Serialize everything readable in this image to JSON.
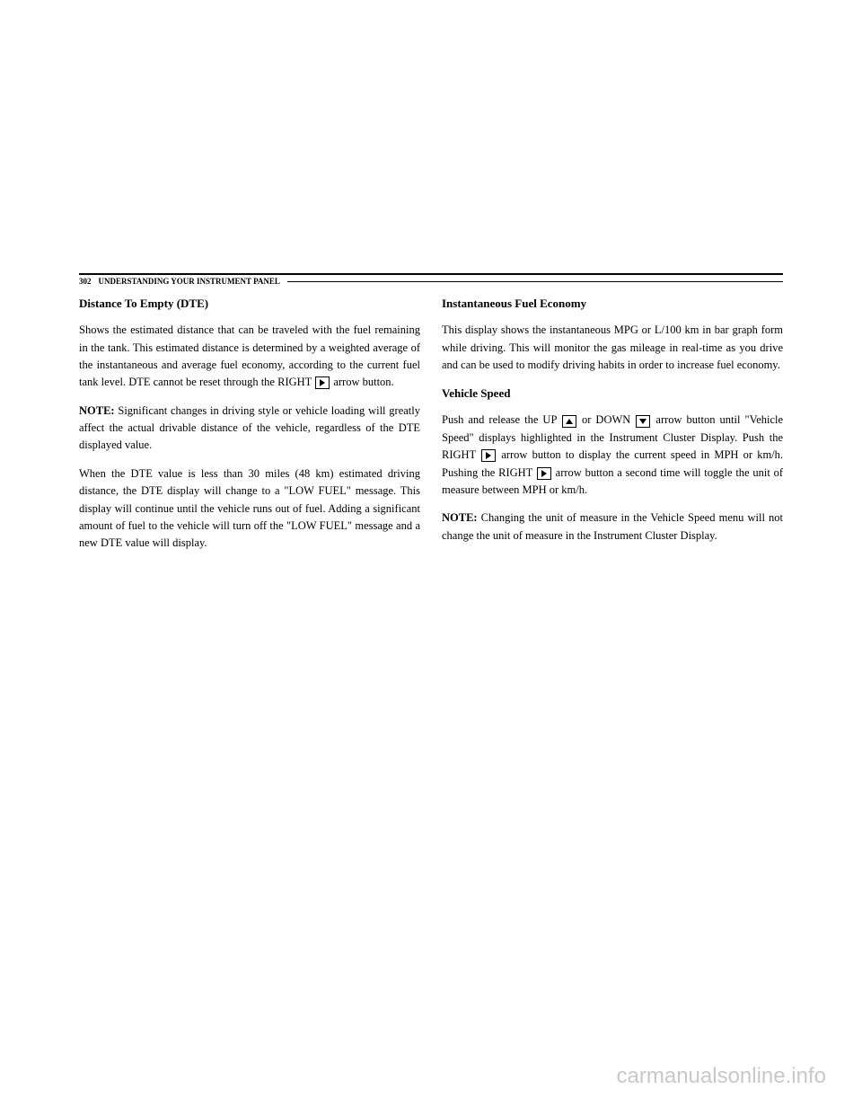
{
  "header": {
    "page_number": "302",
    "section_title": "UNDERSTANDING YOUR INSTRUMENT PANEL"
  },
  "left_column": {
    "title1": "Distance To Empty (DTE)",
    "para1_part1": "Shows the estimated distance that can be traveled with the fuel remaining in the tank. This estimated distance is determined by a weighted average of the instantaneous and average fuel economy, according to the current fuel tank level. DTE cannot be reset through the RIGHT",
    "para1_part2": "arrow button.",
    "note1_label": "NOTE:",
    "note1_text": " Significant changes in driving style or vehicle loading will greatly affect the actual drivable distance of the vehicle, regardless of the DTE displayed value.",
    "para2": "When the DTE value is less than 30 miles (48 km) estimated driving distance, the DTE display will change to a \"LOW FUEL\" message. This display will continue until the vehicle runs out of fuel. Adding a significant amount of fuel to the vehicle will turn off the \"LOW FUEL\" message and a new DTE value will display."
  },
  "right_column": {
    "title1": "Instantaneous Fuel Economy",
    "para1": "This display shows the instantaneous MPG or L/100 km in bar graph form while driving. This will monitor the gas mileage in real-time as you drive and can be used to modify driving habits in order to increase fuel economy.",
    "title2": "Vehicle Speed",
    "para2_part1": "Push and release the UP",
    "para2_part2": "or DOWN",
    "para2_part3": "arrow button until \"Vehicle Speed\" displays highlighted in the Instrument Cluster Display. Push the RIGHT",
    "para2_part4": "arrow button to display the current speed in MPH or km/h. Pushing the RIGHT",
    "para2_part5": "arrow button a second time will toggle the unit of measure between MPH or km/h.",
    "note2_label": "NOTE:",
    "note2_text": " Changing the unit of measure in the Vehicle Speed menu will not change the unit of measure in the Instrument Cluster Display."
  },
  "watermark": "carmanualsonline.info"
}
